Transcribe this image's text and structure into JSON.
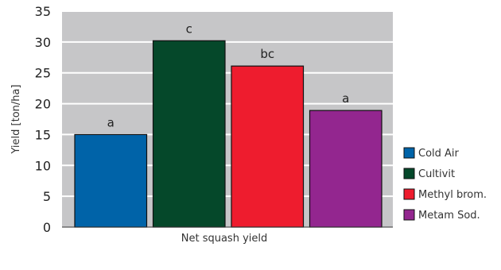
{
  "chart_data": {
    "type": "bar",
    "categories": [
      "Net squash yield"
    ],
    "xlabel": "Net squash yield",
    "ylabel": "Yield [ton/ha]",
    "ylim": [
      0,
      35
    ],
    "yticks": [
      0,
      5,
      10,
      15,
      20,
      25,
      30,
      35
    ],
    "grid": true,
    "legend": "right",
    "background_color": "#c6c6c8",
    "series": [
      {
        "name": "Cold Air",
        "values": [
          15.0
        ],
        "color": "#0063a8",
        "annotation": "a"
      },
      {
        "name": "Cultivit",
        "values": [
          30.2
        ],
        "color": "#05482a",
        "annotation": "c"
      },
      {
        "name": "Methyl brom.",
        "values": [
          26.1
        ],
        "color": "#ee1c2e",
        "annotation": "bc"
      },
      {
        "name": "Metam Sod.",
        "values": [
          18.9
        ],
        "color": "#93268f",
        "annotation": "a"
      }
    ]
  }
}
